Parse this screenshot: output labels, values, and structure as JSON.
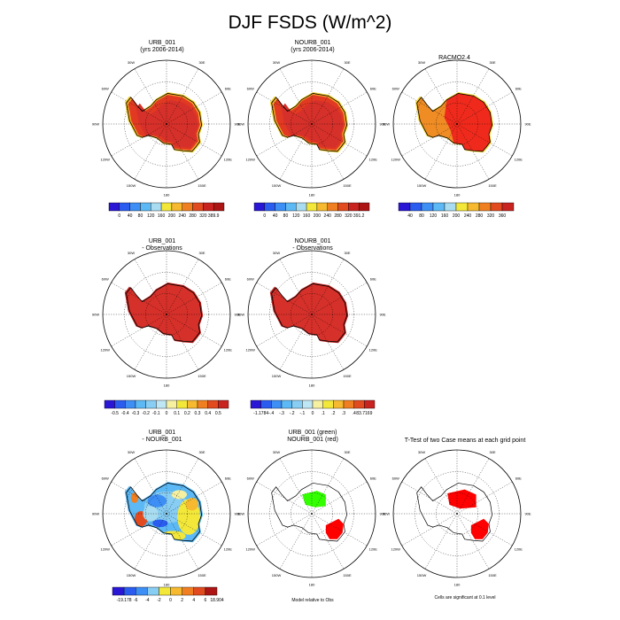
{
  "title": "DJF FSDS (W/m^2)",
  "colors": {
    "antarctica_red": "#d6302a",
    "coast_orange": "#f4a32a",
    "coast_yellow": "#f6d93a",
    "outline": "#000000",
    "sig_green": "#33ff00",
    "sig_red": "#ff0000"
  },
  "grid_labels": {
    "lon": [
      "30W",
      "30E",
      "60W",
      "60E",
      "90W",
      "90E",
      "120W",
      "120E",
      "150W",
      "150E",
      "180"
    ]
  },
  "panels": [
    {
      "id": "urb",
      "title_lines": [
        "URB_001",
        "(yrs 2006-2014)"
      ]
    },
    {
      "id": "nourb",
      "title_lines": [
        "NOURB_001",
        "(yrs 2006-2014)"
      ]
    },
    {
      "id": "obs",
      "title_lines": [
        "RACMO2.4"
      ]
    },
    {
      "id": "urb_obs",
      "title_lines": [
        "URB_001",
        "- Observations"
      ]
    },
    {
      "id": "nourb_obs",
      "title_lines": [
        "NOURB_001",
        "- Observations"
      ]
    },
    {
      "id": "urb_nourb",
      "title_lines": [
        "URB_001",
        "- NOURB_001"
      ]
    },
    {
      "id": "sig_model",
      "title_lines": [
        "URB_001 (green)",
        "NOURB_001 (red)"
      ],
      "note": "Model relative to Obs"
    },
    {
      "id": "ttest",
      "title_lines": [
        "T-Test of two Case means at each grid point"
      ],
      "note": "Cells are significant at 0.1 level"
    }
  ],
  "chart_data": [
    {
      "type": "heatmap",
      "map": "south-polar",
      "name_hint": "URB_001",
      "colorbar": {
        "labels": [
          "0",
          "40",
          "80",
          "120",
          "160",
          "200",
          "240",
          "280",
          "320",
          "389.9"
        ],
        "colors": [
          "#2a17d6",
          "#2a5cf0",
          "#3d8ef5",
          "#5cb9f5",
          "#a9dcf0",
          "#f3e83a",
          "#f6b92f",
          "#f07f22",
          "#e24a1f",
          "#c8231f",
          "#ad1515"
        ]
      }
    },
    {
      "type": "heatmap",
      "map": "south-polar",
      "name_hint": "NOURB_001",
      "colorbar": {
        "labels": [
          "0",
          "40",
          "80",
          "120",
          "160",
          "200",
          "240",
          "280",
          "320",
          "391.2"
        ],
        "colors": [
          "#2a17d6",
          "#2a5cf0",
          "#3d8ef5",
          "#5cb9f5",
          "#a9dcf0",
          "#f3e83a",
          "#f6b92f",
          "#f07f22",
          "#e24a1f",
          "#c8231f",
          "#ad1515"
        ]
      }
    },
    {
      "type": "heatmap",
      "map": "south-polar",
      "name_hint": "RACMO2.4",
      "colorbar": {
        "labels": [
          "40",
          "80",
          "120",
          "160",
          "200",
          "240",
          "280",
          "320",
          "360"
        ],
        "colors": [
          "#2a17d6",
          "#2a5cf0",
          "#3d8ef5",
          "#5cb9f5",
          "#a9dcf0",
          "#f3e83a",
          "#f6b92f",
          "#f07f22",
          "#e24a1f",
          "#c8231f"
        ]
      }
    },
    {
      "type": "heatmap",
      "map": "south-polar",
      "name_hint": "URB_001 - Observations",
      "colorbar": {
        "labels": [
          "-0.5",
          "-0.4",
          "-0.3",
          "-0.2",
          "-0.1",
          "0",
          "0.1",
          "0.2",
          "0.3",
          "0.4",
          "0.5"
        ],
        "colors": [
          "#2a17d6",
          "#2a5cf0",
          "#3d8ef5",
          "#5cb9f5",
          "#88cdf3",
          "#bfe6f5",
          "#f6f0a0",
          "#f3e83a",
          "#f6b92f",
          "#f07f22",
          "#e24a1f",
          "#c8231f"
        ]
      }
    },
    {
      "type": "heatmap",
      "map": "south-polar",
      "name_hint": "NOURB_001 - Observations",
      "colorbar": {
        "labels": [
          "-1.1784",
          "-.4",
          "-.3",
          "-.2",
          "-.1",
          "0",
          ".1",
          ".2",
          ".3",
          ".4",
          "83.7169"
        ],
        "colors": [
          "#2a17d6",
          "#2a5cf0",
          "#3d8ef5",
          "#5cb9f5",
          "#88cdf3",
          "#bfe6f5",
          "#f6f0a0",
          "#f3e83a",
          "#f6b92f",
          "#f07f22",
          "#e24a1f",
          "#c8231f"
        ]
      }
    },
    {
      "type": "heatmap",
      "map": "south-polar",
      "name_hint": "URB_001 - NOURB_001",
      "colorbar": {
        "labels": [
          "-19.178",
          "-6",
          "-4",
          "-2",
          "0",
          "2",
          "4",
          "6",
          "18.904"
        ],
        "colors": [
          "#2a17d6",
          "#2a5cf0",
          "#3d8ef5",
          "#88cdf3",
          "#f3e83a",
          "#f6b92f",
          "#f07f22",
          "#e24a1f",
          "#ad1515"
        ]
      }
    }
  ]
}
